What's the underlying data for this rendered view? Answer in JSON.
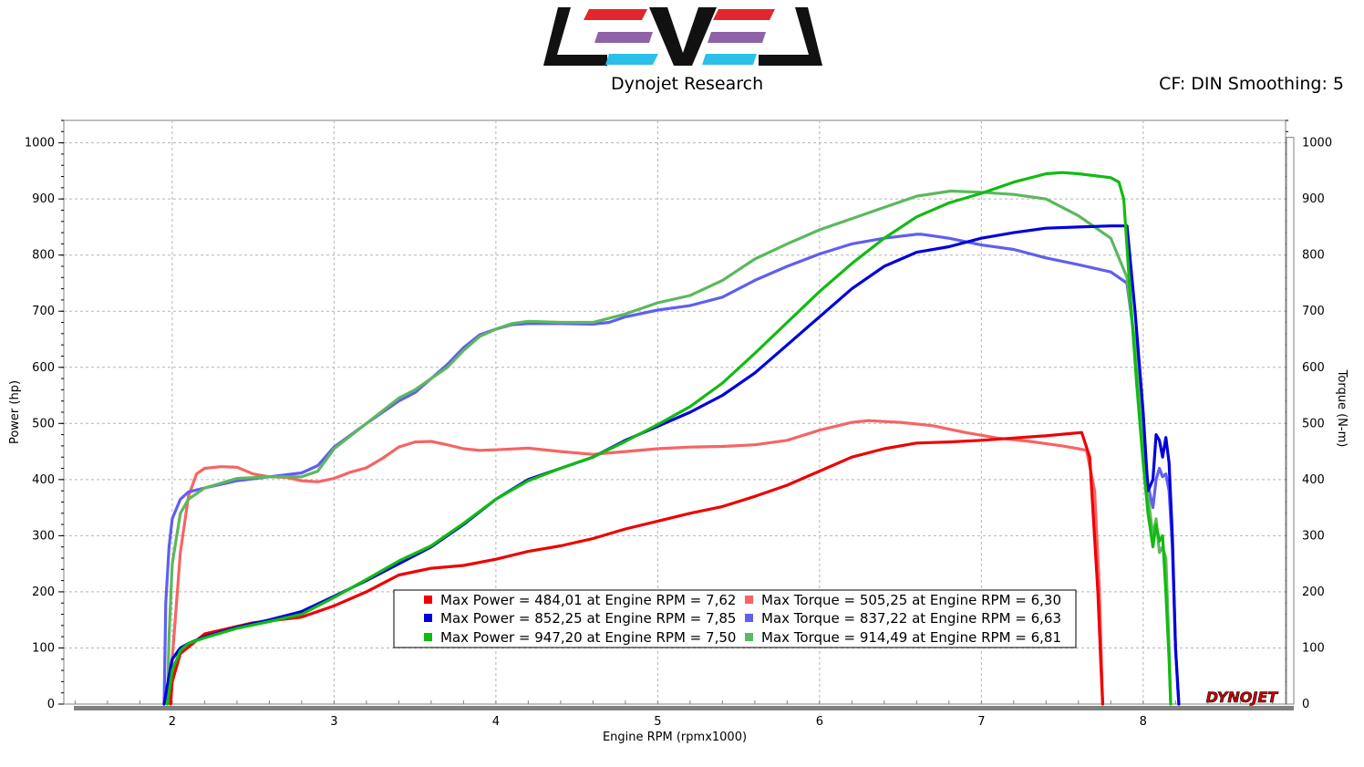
{
  "header": {
    "brand": "Dynojet Research",
    "corrections": "CF: DIN Smoothing: 5",
    "footer_logo": "DYNOJET"
  },
  "colors": {
    "run1": "#ee0000",
    "run1_torque": "#f56565",
    "run2": "#0000dd",
    "run2_torque": "#5f5ff0",
    "run3": "#11bb11",
    "run3_torque": "#5cb85c",
    "logo_red": "#e3262d",
    "logo_purple": "#8e62a6",
    "logo_cyan": "#2cc0e8"
  },
  "chart_data": {
    "type": "line",
    "xlabel": "Engine RPM (rpmx1000)",
    "ylabel_left": "Power (hp)",
    "ylabel_right": "Torque (N-m)",
    "xlim": [
      1.33,
      8.88
    ],
    "ylim": [
      0,
      1040
    ],
    "x_ticks": [
      "2",
      "3",
      "4",
      "5",
      "6",
      "7",
      "8"
    ],
    "y_ticks": [
      "0",
      "100",
      "200",
      "300",
      "400",
      "500",
      "600",
      "700",
      "800",
      "900",
      "1000"
    ],
    "grid": true,
    "legend": "bottom-center",
    "legend_entries": [
      {
        "text": "Max Power = 484,01 at Engine RPM = 7,62",
        "series": 0
      },
      {
        "text": "Max Torque = 505,25 at Engine RPM = 6,30",
        "series": 1
      },
      {
        "text": "Max Power = 852,25 at Engine RPM = 7,85",
        "series": 2
      },
      {
        "text": "Max Torque = 837,22 at Engine RPM = 6,63",
        "series": 3
      },
      {
        "text": "Max Power = 947,20 at Engine RPM = 7,50",
        "series": 4
      },
      {
        "text": "Max Torque = 914,49 at Engine RPM = 6,81",
        "series": 5
      }
    ],
    "series": [
      {
        "name": "Max Power = 484,01 at Engine RPM = 7,62",
        "color_key": "run1",
        "x": [
          1.99,
          2.0,
          2.05,
          2.2,
          2.5,
          2.8,
          3.0,
          3.2,
          3.4,
          3.6,
          3.8,
          4.0,
          4.2,
          4.4,
          4.6,
          4.8,
          5.0,
          5.2,
          5.4,
          5.6,
          5.8,
          6.0,
          6.2,
          6.4,
          6.6,
          6.8,
          7.0,
          7.2,
          7.4,
          7.55,
          7.62,
          7.67,
          7.72,
          7.74,
          7.75
        ],
        "y": [
          0,
          40,
          90,
          125,
          145,
          155,
          175,
          200,
          230,
          242,
          247,
          258,
          272,
          282,
          295,
          312,
          326,
          340,
          352,
          370,
          390,
          415,
          440,
          455,
          465,
          467,
          470,
          474,
          478,
          482,
          484,
          440,
          200,
          60,
          0
        ]
      },
      {
        "name": "Max Torque = 505,25 at Engine RPM = 6,30",
        "color_key": "run1_torque",
        "x": [
          1.99,
          2.0,
          2.05,
          2.1,
          2.15,
          2.2,
          2.3,
          2.4,
          2.5,
          2.6,
          2.7,
          2.8,
          2.9,
          3.0,
          3.1,
          3.2,
          3.3,
          3.4,
          3.5,
          3.6,
          3.7,
          3.8,
          3.9,
          4.0,
          4.2,
          4.4,
          4.6,
          4.8,
          5.0,
          5.2,
          5.4,
          5.6,
          5.8,
          6.0,
          6.2,
          6.3,
          6.5,
          6.7,
          6.9,
          7.1,
          7.3,
          7.5,
          7.6,
          7.65,
          7.7,
          7.73,
          7.75
        ],
        "y": [
          0,
          80,
          270,
          370,
          410,
          420,
          423,
          422,
          410,
          405,
          404,
          398,
          396,
          402,
          413,
          421,
          438,
          458,
          467,
          468,
          462,
          455,
          452,
          453,
          456,
          450,
          445,
          450,
          455,
          458,
          459,
          462,
          470,
          488,
          502,
          505,
          502,
          496,
          484,
          474,
          468,
          460,
          455,
          452,
          380,
          200,
          0
        ]
      },
      {
        "name": "Max Power = 852,25 at Engine RPM = 7,85",
        "color_key": "run2",
        "x": [
          1.95,
          1.98,
          2.0,
          2.05,
          2.1,
          2.2,
          2.4,
          2.6,
          2.8,
          3.0,
          3.2,
          3.4,
          3.6,
          3.8,
          4.0,
          4.2,
          4.4,
          4.6,
          4.8,
          5.0,
          5.2,
          5.4,
          5.6,
          5.8,
          6.0,
          6.2,
          6.4,
          6.6,
          6.8,
          7.0,
          7.2,
          7.4,
          7.6,
          7.8,
          7.85,
          7.9,
          7.95,
          8.0,
          8.03,
          8.06,
          8.08,
          8.1,
          8.12,
          8.14,
          8.16,
          8.18,
          8.2,
          8.22
        ],
        "y": [
          0,
          50,
          80,
          100,
          108,
          120,
          137,
          150,
          165,
          192,
          220,
          250,
          280,
          320,
          365,
          400,
          420,
          440,
          470,
          495,
          520,
          550,
          590,
          640,
          690,
          740,
          780,
          805,
          815,
          830,
          840,
          848,
          850,
          852,
          852,
          852,
          700,
          520,
          380,
          400,
          480,
          470,
          440,
          475,
          430,
          300,
          100,
          0
        ]
      },
      {
        "name": "Max Torque = 837,22 at Engine RPM = 6,63",
        "color_key": "run2_torque",
        "x": [
          1.95,
          1.96,
          1.98,
          2.0,
          2.05,
          2.1,
          2.2,
          2.4,
          2.6,
          2.8,
          2.9,
          3.0,
          3.2,
          3.4,
          3.5,
          3.6,
          3.7,
          3.8,
          3.9,
          4.0,
          4.1,
          4.2,
          4.4,
          4.6,
          4.7,
          4.8,
          5.0,
          5.2,
          5.4,
          5.6,
          5.8,
          6.0,
          6.2,
          6.4,
          6.6,
          6.63,
          6.8,
          7.0,
          7.2,
          7.4,
          7.6,
          7.8,
          7.9,
          7.95,
          8.0,
          8.03,
          8.06,
          8.08,
          8.1,
          8.12,
          8.14,
          8.16,
          8.18,
          8.2,
          8.22
        ],
        "y": [
          0,
          180,
          280,
          330,
          365,
          378,
          385,
          398,
          405,
          412,
          425,
          458,
          500,
          540,
          555,
          580,
          605,
          635,
          658,
          668,
          676,
          678,
          678,
          677,
          680,
          690,
          702,
          710,
          725,
          755,
          780,
          802,
          820,
          830,
          837,
          837,
          830,
          818,
          810,
          795,
          783,
          770,
          750,
          640,
          480,
          390,
          350,
          400,
          420,
          405,
          410,
          380,
          280,
          100,
          0
        ]
      },
      {
        "name": "Max Power = 947,20 at Engine RPM = 7,50",
        "color_key": "run3",
        "x": [
          1.97,
          2.0,
          2.05,
          2.1,
          2.2,
          2.4,
          2.6,
          2.8,
          3.0,
          3.2,
          3.4,
          3.6,
          3.8,
          4.0,
          4.2,
          4.4,
          4.6,
          4.8,
          5.0,
          5.2,
          5.4,
          5.6,
          5.8,
          6.0,
          6.2,
          6.4,
          6.6,
          6.8,
          7.0,
          7.2,
          7.4,
          7.5,
          7.6,
          7.8,
          7.85,
          7.88,
          7.92,
          7.96,
          8.0,
          8.03,
          8.06,
          8.08,
          8.1,
          8.12,
          8.14,
          8.16,
          8.17
        ],
        "y": [
          0,
          60,
          95,
          108,
          118,
          135,
          147,
          160,
          190,
          222,
          255,
          282,
          322,
          365,
          398,
          420,
          440,
          468,
          498,
          530,
          572,
          625,
          680,
          735,
          785,
          830,
          868,
          893,
          910,
          930,
          945,
          947,
          945,
          938,
          930,
          900,
          730,
          570,
          430,
          340,
          280,
          320,
          290,
          300,
          200,
          80,
          0
        ]
      },
      {
        "name": "Max Torque = 914,49 at Engine RPM = 6,81",
        "color_key": "run3_torque",
        "x": [
          1.97,
          1.98,
          2.0,
          2.05,
          2.1,
          2.2,
          2.4,
          2.6,
          2.8,
          2.9,
          3.0,
          3.2,
          3.4,
          3.5,
          3.6,
          3.7,
          3.8,
          3.9,
          4.0,
          4.1,
          4.2,
          4.4,
          4.6,
          4.8,
          5.0,
          5.2,
          5.4,
          5.6,
          5.8,
          6.0,
          6.2,
          6.4,
          6.6,
          6.81,
          7.0,
          7.2,
          7.4,
          7.6,
          7.8,
          7.9,
          7.95,
          8.0,
          8.03,
          8.06,
          8.08,
          8.1,
          8.12,
          8.14,
          8.16,
          8.17
        ],
        "y": [
          0,
          120,
          250,
          340,
          365,
          385,
          402,
          405,
          405,
          415,
          455,
          500,
          545,
          560,
          580,
          600,
          630,
          655,
          668,
          678,
          682,
          680,
          680,
          695,
          715,
          728,
          755,
          793,
          820,
          845,
          865,
          885,
          905,
          914,
          912,
          908,
          900,
          870,
          830,
          760,
          640,
          480,
          370,
          300,
          330,
          270,
          280,
          260,
          100,
          0
        ]
      }
    ]
  }
}
